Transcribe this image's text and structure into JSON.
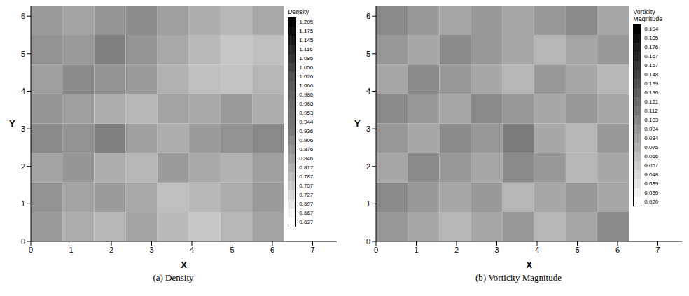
{
  "chart_data": [
    {
      "type": "heatmap",
      "title": "(a) Density",
      "x_label": "X",
      "y_label": "Y",
      "grid": false,
      "xlim": [
        0,
        7.6
      ],
      "xticks": [
        0,
        1,
        2,
        3,
        4,
        5,
        6,
        7
      ],
      "ylim": [
        0,
        6.283
      ],
      "yticks": [
        0,
        1,
        2,
        3,
        4,
        5,
        6
      ],
      "x_edges": [
        0,
        0.785,
        1.571,
        2.356,
        3.142,
        3.927,
        4.712,
        5.498,
        6.283
      ],
      "y_edges": [
        0,
        0.785,
        1.571,
        2.356,
        3.142,
        3.927,
        4.712,
        5.498,
        6.283
      ],
      "cells": [
        [
          0.86,
          0.82,
          0.8,
          0.84,
          0.79,
          0.76,
          0.8,
          0.84
        ],
        [
          0.88,
          0.84,
          0.86,
          0.83,
          0.78,
          0.8,
          0.82,
          0.86
        ],
        [
          0.84,
          0.87,
          0.82,
          0.8,
          0.86,
          0.83,
          0.81,
          0.85
        ],
        [
          0.9,
          0.88,
          0.92,
          0.85,
          0.82,
          0.86,
          0.88,
          0.9
        ],
        [
          0.87,
          0.85,
          0.82,
          0.8,
          0.84,
          0.83,
          0.86,
          0.82
        ],
        [
          0.85,
          0.9,
          0.88,
          0.86,
          0.81,
          0.78,
          0.77,
          0.8
        ],
        [
          0.88,
          0.86,
          0.92,
          0.87,
          0.83,
          0.79,
          0.76,
          0.78
        ],
        [
          0.86,
          0.84,
          0.87,
          0.89,
          0.85,
          0.82,
          0.8,
          0.83
        ]
      ],
      "colorbar": {
        "title": "Density",
        "range": [
          0.637,
          1.205
        ],
        "ticks": [
          1.205,
          1.175,
          1.145,
          1.116,
          1.086,
          1.056,
          1.026,
          1.006,
          0.986,
          0.968,
          0.953,
          0.944,
          0.936,
          0.906,
          0.876,
          0.846,
          0.817,
          0.787,
          0.757,
          0.727,
          0.697,
          0.667,
          0.637
        ]
      }
    },
    {
      "type": "heatmap",
      "title": "(b) Vorticity Magnitude",
      "x_label": "X",
      "y_label": "Y",
      "grid": false,
      "xlim": [
        0,
        7.6
      ],
      "xticks": [
        0,
        1,
        2,
        3,
        4,
        5,
        6,
        7
      ],
      "ylim": [
        0,
        6.283
      ],
      "yticks": [
        0,
        1,
        2,
        3,
        4,
        5,
        6
      ],
      "x_edges": [
        0,
        0.785,
        1.571,
        2.356,
        3.142,
        3.927,
        4.712,
        5.498,
        6.283
      ],
      "y_edges": [
        0,
        0.785,
        1.571,
        2.356,
        3.142,
        3.927,
        4.712,
        5.498,
        6.283
      ],
      "cells": [
        [
          0.09,
          0.08,
          0.07,
          0.08,
          0.09,
          0.07,
          0.08,
          0.1
        ],
        [
          0.1,
          0.09,
          0.08,
          0.09,
          0.07,
          0.08,
          0.09,
          0.08
        ],
        [
          0.08,
          0.1,
          0.09,
          0.08,
          0.1,
          0.09,
          0.07,
          0.08
        ],
        [
          0.09,
          0.08,
          0.1,
          0.09,
          0.11,
          0.08,
          0.07,
          0.09
        ],
        [
          0.1,
          0.09,
          0.08,
          0.1,
          0.09,
          0.08,
          0.09,
          0.08
        ],
        [
          0.08,
          0.1,
          0.09,
          0.08,
          0.07,
          0.09,
          0.08,
          0.07
        ],
        [
          0.09,
          0.08,
          0.1,
          0.09,
          0.08,
          0.07,
          0.08,
          0.09
        ],
        [
          0.1,
          0.09,
          0.08,
          0.09,
          0.08,
          0.09,
          0.1,
          0.08
        ]
      ],
      "colorbar": {
        "title": "Vorticity Magnitude",
        "range": [
          0.02,
          0.194
        ],
        "ticks": [
          0.194,
          0.185,
          0.176,
          0.167,
          0.157,
          0.148,
          0.139,
          {
            "value": 0.13,
            "label": "0.130"
          },
          0.121,
          0.112,
          0.103,
          0.094,
          0.084,
          0.075,
          0.066,
          0.057,
          0.048,
          0.039,
          {
            "value": 0.03,
            "label": "0.030"
          },
          {
            "value": 0.02,
            "label": "0.020"
          }
        ]
      }
    }
  ]
}
